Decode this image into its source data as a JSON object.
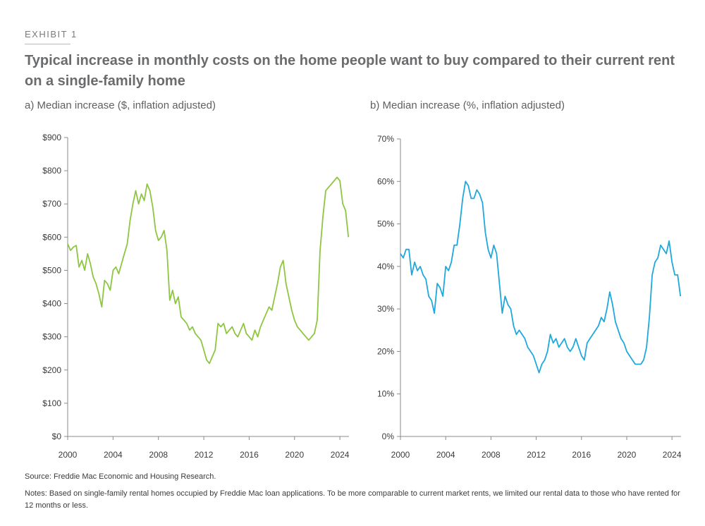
{
  "exhibit_label": "EXHIBIT 1",
  "title": "Typical increase in monthly costs on the home people want to buy compared to their current rent on a single-family home",
  "source": "Source: Freddie Mac Economic and Housing Research.",
  "notes": "Notes: Based on single-family rental homes occupied by Freddie Mac loan applications. To be more comparable to current market rents, we limited our rental data to those who have rented for 12 months or less.",
  "colors": {
    "panel_a_line": "#8dc63f",
    "panel_b_line": "#1fa8dc",
    "axis": "#8a8b8d"
  },
  "chart_data": [
    {
      "type": "line",
      "subtitle": "a) Median increase ($, inflation adjusted)",
      "xlabel": "",
      "ylabel": "",
      "xlim": [
        2000,
        2024.8
      ],
      "ylim": [
        0,
        900
      ],
      "x_ticks": [
        2000,
        2004,
        2008,
        2012,
        2016,
        2020,
        2024
      ],
      "x_tick_labels": [
        "2000",
        "2004",
        "2008",
        "2012",
        "2016",
        "2020",
        "2024"
      ],
      "y_ticks": [
        0,
        100,
        200,
        300,
        400,
        500,
        600,
        700,
        800,
        900
      ],
      "y_tick_labels": [
        "$0",
        "$100",
        "$200",
        "$300",
        "$400",
        "$500",
        "$600",
        "$700",
        "$800",
        "$900"
      ],
      "grid": false,
      "series": [
        {
          "x": [
            2000.0,
            2000.25,
            2000.5,
            2000.75,
            2001.0,
            2001.25,
            2001.5,
            2001.75,
            2002.0,
            2002.25,
            2002.5,
            2002.75,
            2003.0,
            2003.25,
            2003.5,
            2003.75,
            2004.0,
            2004.25,
            2004.5,
            2004.75,
            2005.0,
            2005.25,
            2005.5,
            2005.75,
            2006.0,
            2006.25,
            2006.5,
            2006.75,
            2007.0,
            2007.25,
            2007.5,
            2007.75,
            2008.0,
            2008.25,
            2008.5,
            2008.75,
            2009.0,
            2009.25,
            2009.5,
            2009.75,
            2010.0,
            2010.25,
            2010.5,
            2010.75,
            2011.0,
            2011.25,
            2011.5,
            2011.75,
            2012.0,
            2012.25,
            2012.5,
            2012.75,
            2013.0,
            2013.25,
            2013.5,
            2013.75,
            2014.0,
            2014.25,
            2014.5,
            2014.75,
            2015.0,
            2015.25,
            2015.5,
            2015.75,
            2016.0,
            2016.25,
            2016.5,
            2016.75,
            2017.0,
            2017.25,
            2017.5,
            2017.75,
            2018.0,
            2018.25,
            2018.5,
            2018.75,
            2019.0,
            2019.25,
            2019.5,
            2019.75,
            2020.0,
            2020.25,
            2020.5,
            2020.75,
            2021.0,
            2021.25,
            2021.5,
            2021.75,
            2022.0,
            2022.25,
            2022.5,
            2022.75,
            2023.0,
            2023.25,
            2023.5,
            2023.75,
            2024.0,
            2024.25,
            2024.5,
            2024.75
          ],
          "values": [
            580,
            560,
            570,
            575,
            510,
            530,
            500,
            550,
            520,
            480,
            460,
            430,
            390,
            470,
            460,
            440,
            500,
            510,
            490,
            520,
            550,
            580,
            650,
            700,
            740,
            700,
            730,
            710,
            760,
            740,
            690,
            620,
            590,
            600,
            620,
            560,
            410,
            440,
            400,
            420,
            360,
            350,
            340,
            320,
            330,
            310,
            300,
            290,
            260,
            230,
            220,
            240,
            260,
            340,
            330,
            340,
            310,
            320,
            330,
            310,
            300,
            320,
            340,
            310,
            300,
            290,
            320,
            300,
            330,
            350,
            370,
            390,
            380,
            420,
            460,
            510,
            530,
            460,
            420,
            380,
            350,
            330,
            320,
            310,
            300,
            290,
            300,
            310,
            350,
            560,
            660,
            740,
            750,
            760,
            770,
            780,
            770,
            700,
            680,
            600
          ]
        }
      ]
    },
    {
      "type": "line",
      "subtitle": "b) Median increase (%, inflation adjusted)",
      "xlabel": "",
      "ylabel": "",
      "xlim": [
        2000,
        2024.8
      ],
      "ylim": [
        0,
        70
      ],
      "x_ticks": [
        2000,
        2004,
        2008,
        2012,
        2016,
        2020,
        2024
      ],
      "x_tick_labels": [
        "2000",
        "2004",
        "2008",
        "2012",
        "2016",
        "2020",
        "2024"
      ],
      "y_ticks": [
        0,
        10,
        20,
        30,
        40,
        50,
        60,
        70
      ],
      "y_tick_labels": [
        "0%",
        "10%",
        "20%",
        "30%",
        "40%",
        "50%",
        "60%",
        "70%"
      ],
      "grid": false,
      "series": [
        {
          "x": [
            2000.0,
            2000.25,
            2000.5,
            2000.75,
            2001.0,
            2001.25,
            2001.5,
            2001.75,
            2002.0,
            2002.25,
            2002.5,
            2002.75,
            2003.0,
            2003.25,
            2003.5,
            2003.75,
            2004.0,
            2004.25,
            2004.5,
            2004.75,
            2005.0,
            2005.25,
            2005.5,
            2005.75,
            2006.0,
            2006.25,
            2006.5,
            2006.75,
            2007.0,
            2007.25,
            2007.5,
            2007.75,
            2008.0,
            2008.25,
            2008.5,
            2008.75,
            2009.0,
            2009.25,
            2009.5,
            2009.75,
            2010.0,
            2010.25,
            2010.5,
            2010.75,
            2011.0,
            2011.25,
            2011.5,
            2011.75,
            2012.0,
            2012.25,
            2012.5,
            2012.75,
            2013.0,
            2013.25,
            2013.5,
            2013.75,
            2014.0,
            2014.25,
            2014.5,
            2014.75,
            2015.0,
            2015.25,
            2015.5,
            2015.75,
            2016.0,
            2016.25,
            2016.5,
            2016.75,
            2017.0,
            2017.25,
            2017.5,
            2017.75,
            2018.0,
            2018.25,
            2018.5,
            2018.75,
            2019.0,
            2019.25,
            2019.5,
            2019.75,
            2020.0,
            2020.25,
            2020.5,
            2020.75,
            2021.0,
            2021.25,
            2021.5,
            2021.75,
            2022.0,
            2022.25,
            2022.5,
            2022.75,
            2023.0,
            2023.25,
            2023.5,
            2023.75,
            2024.0,
            2024.25,
            2024.5,
            2024.75
          ],
          "values": [
            43,
            42,
            44,
            44,
            38,
            41,
            39,
            40,
            38,
            37,
            33,
            32,
            29,
            36,
            35,
            33,
            40,
            39,
            41,
            45,
            45,
            50,
            56,
            60,
            59,
            56,
            56,
            58,
            57,
            55,
            48,
            44,
            42,
            45,
            43,
            36,
            29,
            33,
            31,
            30,
            26,
            24,
            25,
            24,
            23,
            21,
            20,
            19,
            17,
            15,
            17,
            18,
            20,
            24,
            22,
            23,
            21,
            22,
            23,
            21,
            20,
            21,
            23,
            21,
            19,
            18,
            22,
            23,
            24,
            25,
            26,
            28,
            27,
            30,
            34,
            31,
            27,
            25,
            23,
            22,
            20,
            19,
            18,
            17,
            17,
            17,
            18,
            21,
            28,
            38,
            41,
            42,
            45,
            44,
            43,
            46,
            41,
            38,
            38,
            33
          ]
        }
      ]
    }
  ]
}
